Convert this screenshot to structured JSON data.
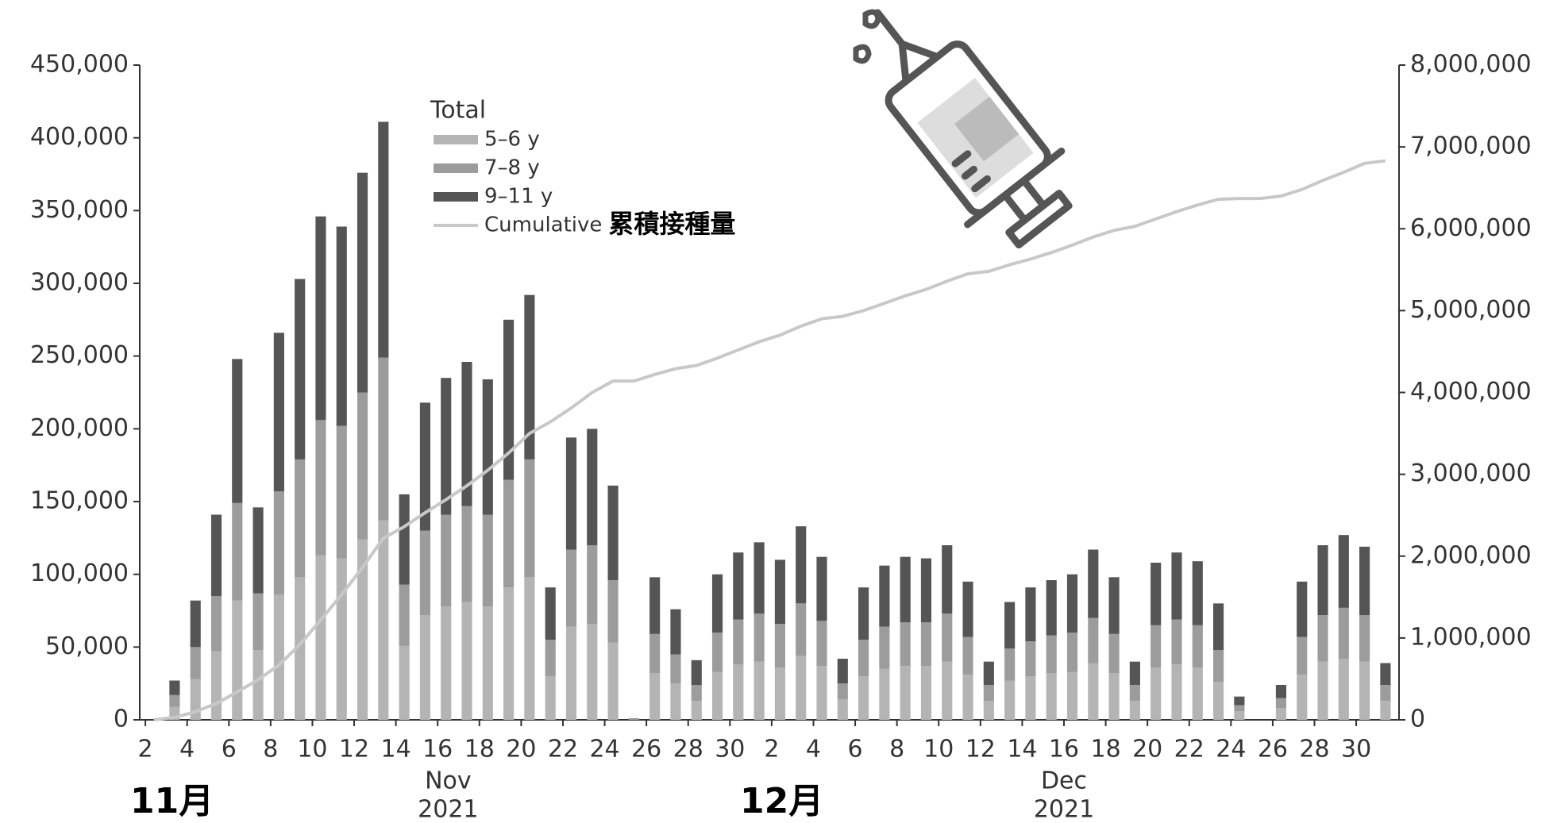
{
  "chart_data": {
    "type": "bar",
    "stacked": true,
    "legend_title": "Total",
    "annotations": [
      "累積接種量",
      "11月",
      "12月"
    ],
    "x_groups": [
      {
        "month": "Nov",
        "year": "2021"
      },
      {
        "month": "Dec",
        "year": "2021"
      }
    ],
    "x": [
      2,
      3,
      4,
      5,
      6,
      7,
      8,
      9,
      10,
      11,
      12,
      13,
      14,
      15,
      16,
      17,
      18,
      19,
      20,
      21,
      22,
      23,
      24,
      25,
      26,
      27,
      28,
      29,
      30,
      31,
      32,
      33,
      34,
      35,
      36,
      37,
      38,
      39,
      40,
      41,
      42,
      43,
      44,
      45,
      46,
      47,
      48,
      49,
      50,
      51,
      52,
      53,
      54,
      55,
      56,
      57,
      58,
      59,
      60,
      61
    ],
    "xlim": [
      1.73,
      62.05
    ],
    "xticks": [
      2,
      4,
      6,
      8,
      10,
      12,
      14,
      16,
      18,
      20,
      22,
      24,
      26,
      28,
      30,
      {
        "value": 32,
        "label": "2"
      },
      {
        "value": 34,
        "label": "4"
      },
      {
        "value": 36,
        "label": "6"
      },
      {
        "value": 38,
        "label": "8"
      },
      {
        "value": 40,
        "label": "10"
      },
      {
        "value": 42,
        "label": "12"
      },
      {
        "value": 44,
        "label": "14"
      },
      {
        "value": 46,
        "label": "16"
      },
      {
        "value": 48,
        "label": "18"
      },
      {
        "value": 50,
        "label": "20"
      },
      {
        "value": 52,
        "label": "22"
      },
      {
        "value": 54,
        "label": "24"
      },
      {
        "value": 56,
        "label": "26"
      },
      {
        "value": 58,
        "label": "28"
      },
      {
        "value": 60,
        "label": "30"
      }
    ],
    "ylim": [
      0,
      450000
    ],
    "yticks": [
      0,
      {
        "value": 50000,
        "label": "50,000"
      },
      {
        "value": 100000,
        "label": "100,000"
      },
      {
        "value": 150000,
        "label": "150,000"
      },
      {
        "value": 200000,
        "label": "200,000"
      },
      {
        "value": 250000,
        "label": "250,000"
      },
      {
        "value": 300000,
        "label": "300,000"
      },
      {
        "value": 350000,
        "label": "350,000"
      },
      {
        "value": 400000,
        "label": "400,000"
      },
      {
        "value": 450000,
        "label": "450,000"
      }
    ],
    "y2lim": [
      0,
      8000000
    ],
    "y2ticks": [
      0,
      {
        "value": 1000000,
        "label": "1,000,000"
      },
      {
        "value": 2000000,
        "label": "2,000,000"
      },
      {
        "value": 3000000,
        "label": "3,000,000"
      },
      {
        "value": 4000000,
        "label": "4,000,000"
      },
      {
        "value": 5000000,
        "label": "5,000,000"
      },
      {
        "value": 6000000,
        "label": "6,000,000"
      },
      {
        "value": 7000000,
        "label": "7,000,000"
      },
      {
        "value": 8000000,
        "label": "8,000,000"
      }
    ],
    "series": [
      {
        "name": "5–6 y",
        "color": "#b4b4b4",
        "values": [
          0,
          9000,
          28000,
          47000,
          82000,
          48000,
          86000,
          98000,
          113000,
          111000,
          124000,
          137000,
          51000,
          72000,
          78000,
          81000,
          78000,
          91000,
          98000,
          30000,
          64000,
          66000,
          53000,
          400,
          32000,
          25000,
          13000,
          33000,
          38000,
          40000,
          36000,
          44000,
          37000,
          14000,
          30000,
          35000,
          37000,
          37000,
          40000,
          31000,
          13000,
          27000,
          30000,
          32000,
          33000,
          39000,
          32000,
          13000,
          36000,
          38000,
          36000,
          26000,
          6000,
          0,
          8000,
          31000,
          40000,
          42000,
          40000,
          13000
        ]
      },
      {
        "name": "7–8 y",
        "color": "#9c9c9c",
        "values": [
          0,
          8000,
          22000,
          38000,
          67000,
          39000,
          71000,
          81000,
          93000,
          91000,
          101000,
          112000,
          42000,
          58000,
          63000,
          66000,
          63000,
          74000,
          81000,
          25000,
          53000,
          54000,
          43000,
          300,
          27000,
          20000,
          11000,
          27000,
          31000,
          33000,
          30000,
          36000,
          31000,
          11000,
          25000,
          29000,
          30000,
          30000,
          33000,
          26000,
          11000,
          22000,
          24000,
          26000,
          27000,
          31000,
          27000,
          11000,
          29000,
          31000,
          29000,
          22000,
          4000,
          0,
          7000,
          26000,
          32000,
          35000,
          32000,
          11000
        ]
      },
      {
        "name": "9–11 y",
        "color": "#555555",
        "values": [
          0,
          10000,
          32000,
          56000,
          99000,
          59000,
          109000,
          124000,
          140000,
          137000,
          151000,
          162000,
          62000,
          88000,
          94000,
          99000,
          93000,
          110000,
          113000,
          36000,
          77000,
          80000,
          65000,
          300,
          39000,
          31000,
          17000,
          40000,
          46000,
          49000,
          44000,
          53000,
          44000,
          17000,
          36000,
          42000,
          45000,
          44000,
          47000,
          38000,
          16000,
          32000,
          37000,
          38000,
          40000,
          47000,
          39000,
          16000,
          43000,
          46000,
          44000,
          32000,
          6000,
          0,
          9000,
          38000,
          48000,
          50000,
          47000,
          15000
        ]
      },
      {
        "name": "Cumulative",
        "type": "line",
        "axis": "y2",
        "color": "#c8c8c8",
        "values": [
          0,
          30000,
          100000,
          200000,
          340000,
          490000,
          670000,
          920000,
          1220000,
          1530000,
          1860000,
          2220000,
          2360000,
          2530000,
          2690000,
          2860000,
          3050000,
          3260000,
          3500000,
          3640000,
          3810000,
          4000000,
          4140000,
          4140000,
          4220000,
          4290000,
          4330000,
          4420000,
          4520000,
          4620000,
          4700000,
          4810000,
          4900000,
          4930000,
          5000000,
          5090000,
          5180000,
          5260000,
          5360000,
          5450000,
          5480000,
          5560000,
          5630000,
          5710000,
          5800000,
          5900000,
          5980000,
          6030000,
          6120000,
          6210000,
          6290000,
          6360000,
          6370000,
          6370000,
          6400000,
          6480000,
          6590000,
          6690000,
          6800000,
          6830000
        ]
      }
    ]
  }
}
